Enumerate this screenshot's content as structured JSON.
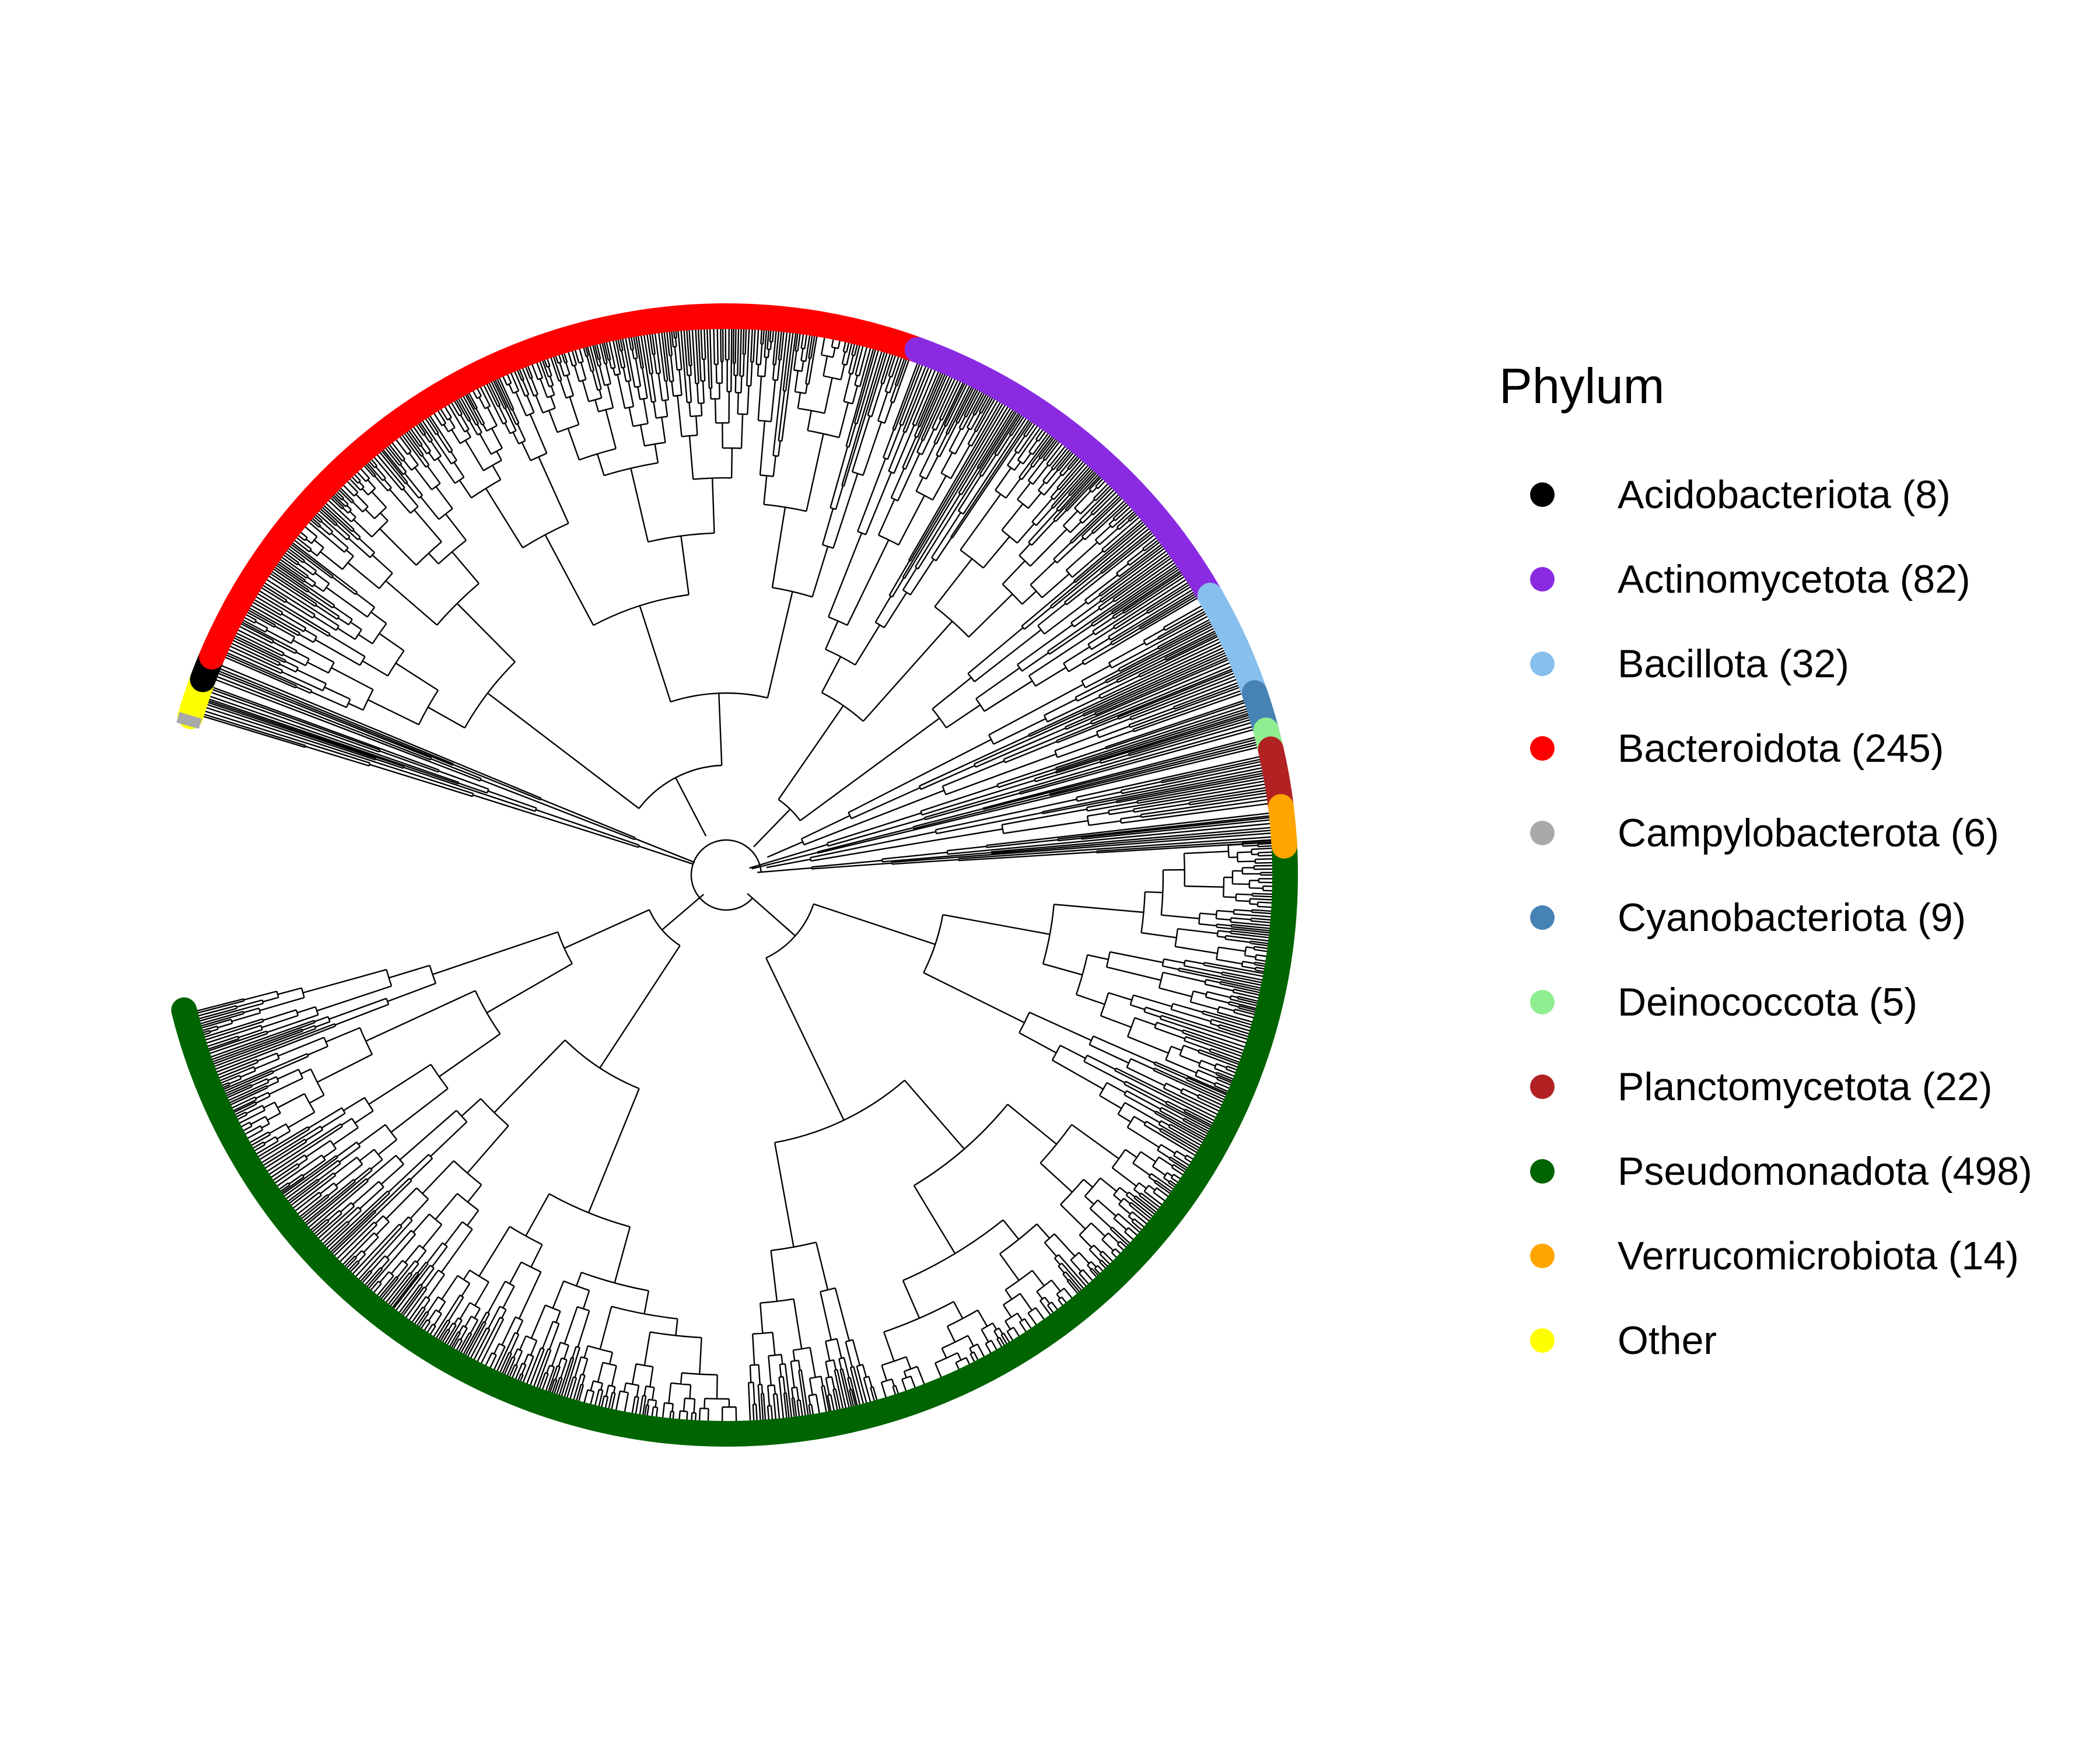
{
  "legend": {
    "title": "Phylum",
    "items": [
      {
        "label": "Acidobacteriota (8)",
        "color": "#000000"
      },
      {
        "label": "Actinomycetota (82)",
        "color": "#8a2be2"
      },
      {
        "label": "Bacillota (32)",
        "color": "#87bfed"
      },
      {
        "label": "Bacteroidota (245)",
        "color": "#ff0000"
      },
      {
        "label": "Campylobacterota (6)",
        "color": "#a9a9a9"
      },
      {
        "label": "Cyanobacteriota (9)",
        "color": "#4682b4"
      },
      {
        "label": "Deinococcota (5)",
        "color": "#90ee90"
      },
      {
        "label": "Planctomycetota (22)",
        "color": "#b22222"
      },
      {
        "label": "Pseudomonadota (498)",
        "color": "#006400"
      },
      {
        "label": "Verrucomicrobiota (14)",
        "color": "#ffa500"
      },
      {
        "label": "Other",
        "color": "#ffff00"
      }
    ]
  },
  "tree": {
    "layout": "circular",
    "branch_color": "#000000"
  }
}
